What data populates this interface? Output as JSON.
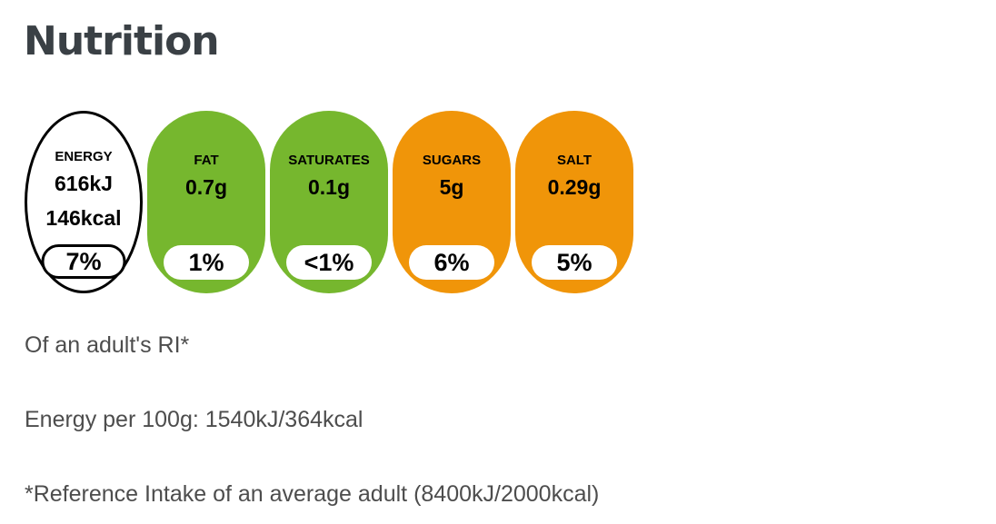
{
  "page": {
    "title": "Nutrition"
  },
  "colors": {
    "green": "#76B72E",
    "orange": "#F09509",
    "title_text": "#3A4045",
    "body_text": "#4D4D4D",
    "tile_text": "#000000",
    "energy_outline": "#000000",
    "pill_background": "#FFFFFF",
    "page_background": "#FFFFFF"
  },
  "nutrients": [
    {
      "label": "ENERGY",
      "value_kj": "616kJ",
      "value_kcal": "146kcal",
      "ri_percent": "7%",
      "style": "outlined-white"
    },
    {
      "label": "FAT",
      "value": "0.7g",
      "ri_percent": "1%",
      "style": "green"
    },
    {
      "label": "SATURATES",
      "value": "0.1g",
      "ri_percent": "<1%",
      "style": "green"
    },
    {
      "label": "SUGARS",
      "value": "5g",
      "ri_percent": "6%",
      "style": "orange"
    },
    {
      "label": "SALT",
      "value": "0.29g",
      "ri_percent": "5%",
      "style": "orange"
    }
  ],
  "footnotes": {
    "ri_note": "Of an adult's RI*",
    "energy_per_100g": "Energy per 100g: 1540kJ/364kcal",
    "reference_intake": "*Reference Intake of an average adult (8400kJ/2000kcal)"
  }
}
